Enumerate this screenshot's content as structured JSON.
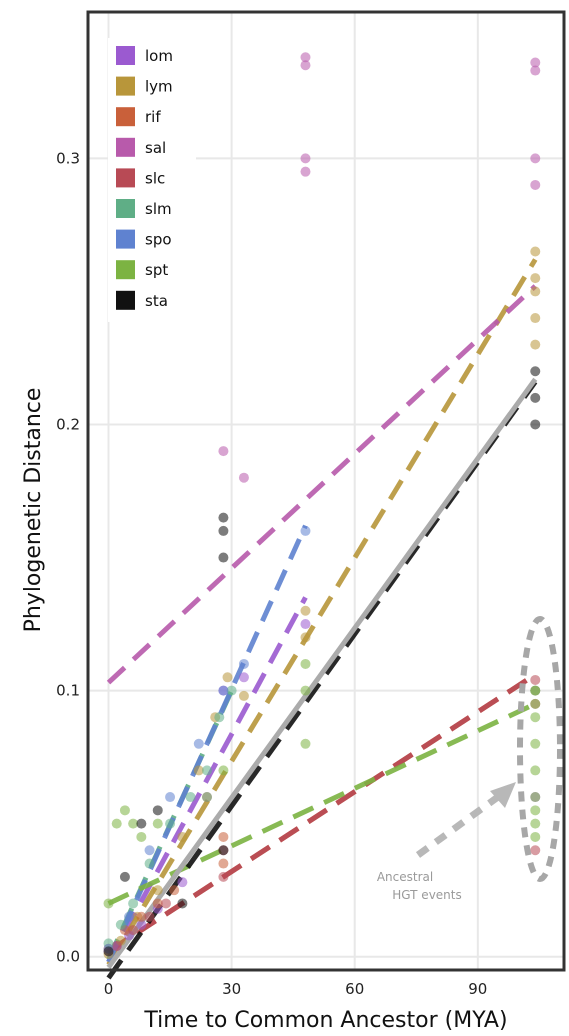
{
  "chart_data": {
    "type": "scatter",
    "title": "",
    "xlabel": "Time to Common Ancestor (MYA)",
    "ylabel": "Phylogenetic Distance",
    "xlim": [
      -5,
      111
    ],
    "ylim": [
      -0.005,
      0.355
    ],
    "x_ticks": [
      0,
      30,
      60,
      90
    ],
    "x_tick_labels": [
      "0",
      "30",
      "60",
      "90"
    ],
    "y_ticks": [
      0.0,
      0.1,
      0.2,
      0.3
    ],
    "y_tick_labels": [
      "0.0",
      "0.1",
      "0.2",
      "0.3"
    ],
    "grid": true,
    "legend_position": "top-left",
    "annotation": {
      "text_lines": [
        "Ancestral",
        "HGT events"
      ],
      "points_to": {
        "x": 104,
        "y": 0.068
      }
    },
    "overall_fit": {
      "color": "#ababab",
      "x": [
        0,
        104
      ],
      "y": [
        -0.004,
        0.217
      ]
    },
    "series": [
      {
        "name": "lom",
        "color": "#9b5ad0",
        "points": [
          [
            0,
            0.002
          ],
          [
            2,
            0.004
          ],
          [
            5,
            0.008
          ],
          [
            8,
            0.012
          ],
          [
            12,
            0.018
          ],
          [
            18,
            0.028
          ],
          [
            24,
            0.06
          ],
          [
            28,
            0.1
          ],
          [
            33,
            0.105
          ],
          [
            48,
            0.125
          ],
          [
            104,
            0.1
          ],
          [
            104,
            0.06
          ]
        ],
        "fit": {
          "x": [
            0,
            48
          ],
          "y": [
            -0.002,
            0.135
          ]
        }
      },
      {
        "name": "lym",
        "color": "#b8963a",
        "points": [
          [
            0,
            0.001
          ],
          [
            3,
            0.006
          ],
          [
            7,
            0.015
          ],
          [
            12,
            0.025
          ],
          [
            18,
            0.045
          ],
          [
            22,
            0.07
          ],
          [
            26,
            0.09
          ],
          [
            29,
            0.105
          ],
          [
            33,
            0.098
          ],
          [
            48,
            0.13
          ],
          [
            48,
            0.12
          ],
          [
            104,
            0.25
          ],
          [
            104,
            0.265
          ],
          [
            104,
            0.24
          ],
          [
            104,
            0.23
          ],
          [
            104,
            0.255
          ]
        ],
        "fit": {
          "x": [
            0,
            104
          ],
          "y": [
            -0.003,
            0.262
          ]
        }
      },
      {
        "name": "rif",
        "color": "#c9603a",
        "points": [
          [
            0,
            0.003
          ],
          [
            4,
            0.01
          ],
          [
            8,
            0.015
          ],
          [
            12,
            0.02
          ],
          [
            16,
            0.025
          ],
          [
            28,
            0.035
          ],
          [
            28,
            0.045
          ]
        ],
        "fit": {
          "x": [
            0,
            104
          ],
          "y": [
            0.002,
            0.106
          ]
        }
      },
      {
        "name": "sal",
        "color": "#b85aab",
        "points": [
          [
            28,
            0.19
          ],
          [
            33,
            0.18
          ],
          [
            48,
            0.3
          ],
          [
            48,
            0.295
          ],
          [
            48,
            0.335
          ],
          [
            48,
            0.338
          ],
          [
            104,
            0.3
          ],
          [
            104,
            0.29
          ],
          [
            104,
            0.333
          ],
          [
            104,
            0.336
          ]
        ],
        "fit": {
          "x": [
            0,
            104
          ],
          "y": [
            0.103,
            0.252
          ]
        }
      },
      {
        "name": "slc",
        "color": "#b84a55",
        "points": [
          [
            2,
            0.004
          ],
          [
            6,
            0.01
          ],
          [
            10,
            0.015
          ],
          [
            14,
            0.02
          ],
          [
            28,
            0.03
          ],
          [
            28,
            0.04
          ],
          [
            104,
            0.104
          ],
          [
            104,
            0.095
          ],
          [
            104,
            0.04
          ]
        ],
        "fit": {
          "x": [
            0,
            104
          ],
          "y": [
            0.002,
            0.106
          ]
        }
      },
      {
        "name": "slm",
        "color": "#5fae86",
        "points": [
          [
            0,
            0.005
          ],
          [
            3,
            0.012
          ],
          [
            6,
            0.02
          ],
          [
            10,
            0.035
          ],
          [
            15,
            0.05
          ],
          [
            20,
            0.06
          ],
          [
            24,
            0.07
          ],
          [
            27,
            0.09
          ],
          [
            30,
            0.1
          ]
        ],
        "fit": {
          "x": [
            0,
            30
          ],
          "y": [
            -0.001,
            0.1
          ]
        }
      },
      {
        "name": "spo",
        "color": "#5f82d0",
        "points": [
          [
            0,
            0.003
          ],
          [
            5,
            0.015
          ],
          [
            10,
            0.04
          ],
          [
            15,
            0.06
          ],
          [
            22,
            0.08
          ],
          [
            28,
            0.1
          ],
          [
            33,
            0.11
          ],
          [
            48,
            0.16
          ]
        ],
        "fit": {
          "x": [
            0,
            48
          ],
          "y": [
            -0.002,
            0.162
          ]
        }
      },
      {
        "name": "spt",
        "color": "#7cb342",
        "points": [
          [
            0,
            0.02
          ],
          [
            2,
            0.05
          ],
          [
            4,
            0.055
          ],
          [
            6,
            0.05
          ],
          [
            8,
            0.045
          ],
          [
            12,
            0.05
          ],
          [
            24,
            0.06
          ],
          [
            28,
            0.07
          ],
          [
            48,
            0.1
          ],
          [
            48,
            0.08
          ],
          [
            48,
            0.11
          ],
          [
            104,
            0.1
          ],
          [
            104,
            0.09
          ],
          [
            104,
            0.08
          ],
          [
            104,
            0.07
          ],
          [
            104,
            0.06
          ],
          [
            104,
            0.05
          ],
          [
            104,
            0.045
          ],
          [
            104,
            0.055
          ],
          [
            104,
            0.095
          ],
          [
            104,
            0.1
          ]
        ],
        "fit": {
          "x": [
            0,
            104
          ],
          "y": [
            0.02,
            0.095
          ]
        }
      },
      {
        "name": "sta",
        "color": "#111111",
        "points": [
          [
            0,
            0.002
          ],
          [
            4,
            0.03
          ],
          [
            8,
            0.05
          ],
          [
            12,
            0.055
          ],
          [
            18,
            0.02
          ],
          [
            28,
            0.04
          ],
          [
            28,
            0.15
          ],
          [
            28,
            0.16
          ],
          [
            28,
            0.165
          ],
          [
            104,
            0.22
          ],
          [
            104,
            0.21
          ],
          [
            104,
            0.2
          ]
        ],
        "fit": {
          "x": [
            0,
            104
          ],
          "y": [
            -0.008,
            0.216
          ]
        }
      }
    ]
  }
}
